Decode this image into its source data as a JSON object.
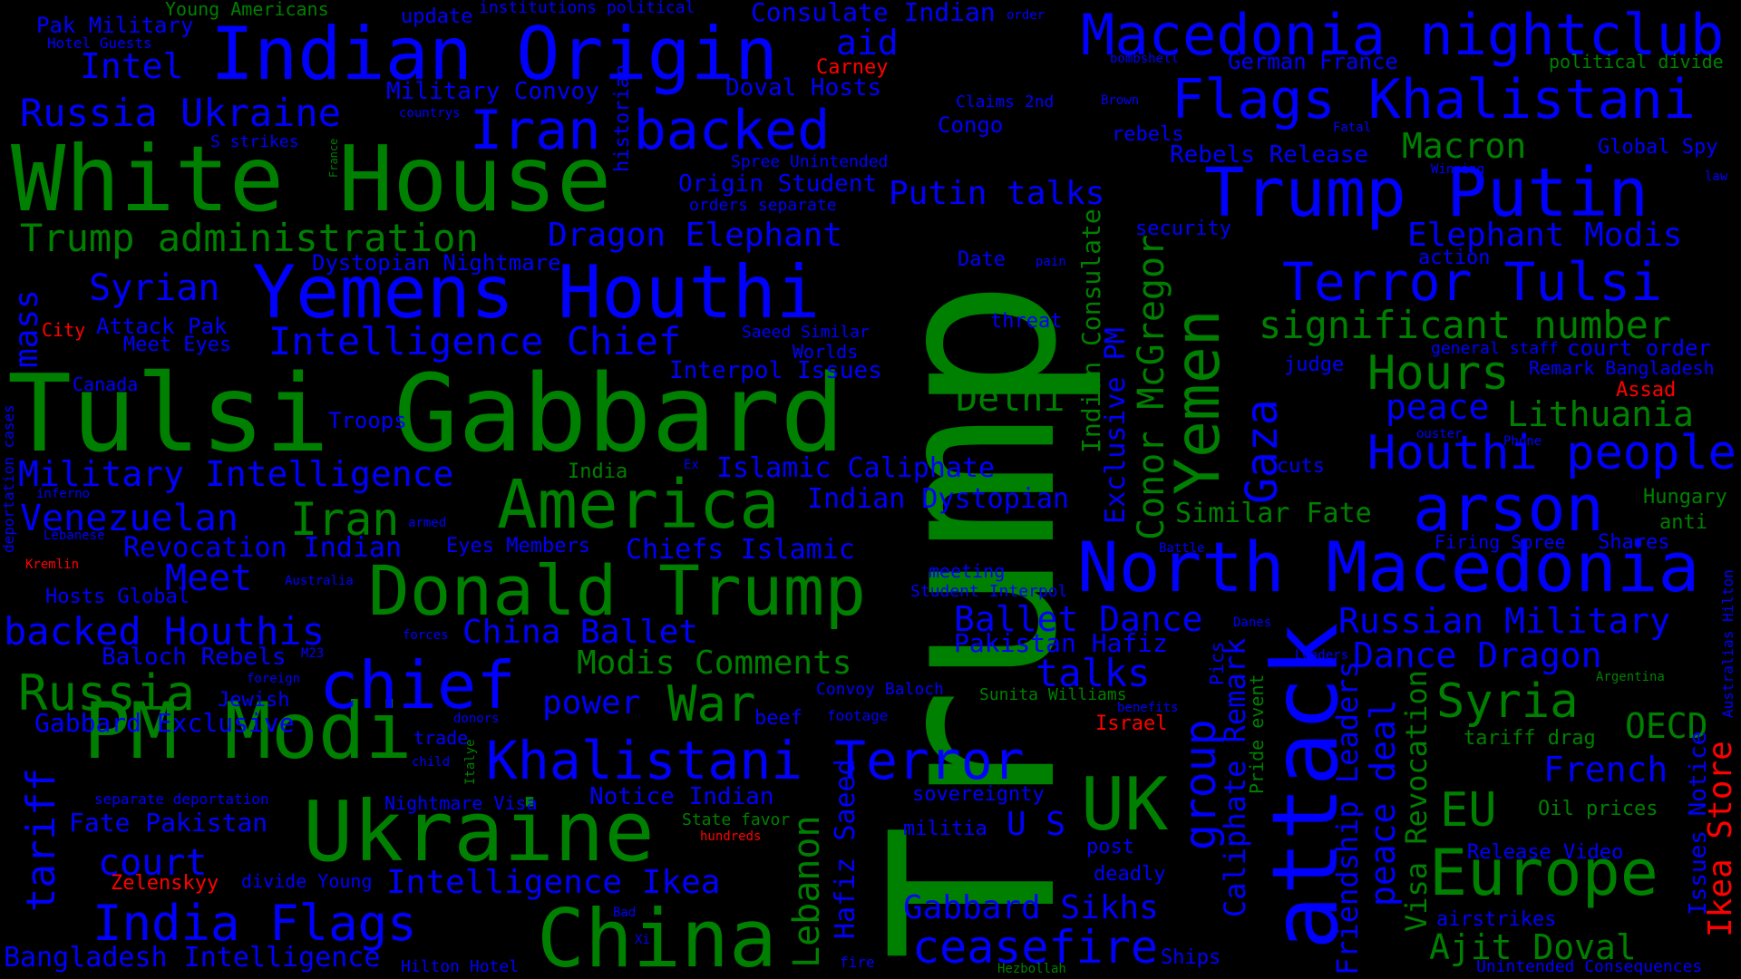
{
  "colors": {
    "background": "#000000",
    "green": "#008000",
    "blue": "#0000ff",
    "red": "#ff0000"
  },
  "words": [
    {
      "text": "Trump",
      "color": "green"
    },
    {
      "text": "Tulsi Gabbard",
      "color": "green"
    },
    {
      "text": "White House",
      "color": "green"
    },
    {
      "text": "Indian Origin",
      "color": "blue"
    },
    {
      "text": "Yemens Houthi",
      "color": "blue"
    },
    {
      "text": "attack",
      "color": "blue"
    },
    {
      "text": "Macedonia nightclub",
      "color": "blue"
    },
    {
      "text": "Trump Putin",
      "color": "blue"
    },
    {
      "text": "Donald Trump",
      "color": "green"
    },
    {
      "text": "Ukraine",
      "color": "green"
    },
    {
      "text": "PM Modi",
      "color": "green"
    },
    {
      "text": "China",
      "color": "green"
    },
    {
      "text": "America",
      "color": "green"
    },
    {
      "text": "North Macedonia",
      "color": "blue"
    },
    {
      "text": "Yemen",
      "color": "green"
    },
    {
      "text": "arson",
      "color": "blue"
    },
    {
      "text": "Europe",
      "color": "green"
    },
    {
      "text": "UK",
      "color": "green"
    },
    {
      "text": "chief",
      "color": "blue"
    },
    {
      "text": "Iran backed",
      "color": "blue"
    },
    {
      "text": "Flags Khalistani",
      "color": "blue"
    },
    {
      "text": "Terror Tulsi",
      "color": "blue"
    },
    {
      "text": "Khalistani Terror",
      "color": "blue"
    },
    {
      "text": "India Flags",
      "color": "blue"
    },
    {
      "text": "ceasefire",
      "color": "blue"
    },
    {
      "text": "Houthi people",
      "color": "blue"
    },
    {
      "text": "Hours",
      "color": "green"
    },
    {
      "text": "Russia",
      "color": "green"
    },
    {
      "text": "Syria",
      "color": "green"
    },
    {
      "text": "EU",
      "color": "green"
    },
    {
      "text": "Iran",
      "color": "green"
    },
    {
      "text": "Ajit Doval",
      "color": "green"
    },
    {
      "text": "Gaza",
      "color": "blue"
    },
    {
      "text": "group",
      "color": "blue"
    },
    {
      "text": "Trump administration",
      "color": "green"
    },
    {
      "text": "Russia Ukraine",
      "color": "blue"
    },
    {
      "text": "significant number",
      "color": "green"
    },
    {
      "text": "Intelligence Chief",
      "color": "blue"
    },
    {
      "text": "Military Intelligence",
      "color": "blue"
    },
    {
      "text": "Dragon Elephant",
      "color": "blue"
    },
    {
      "text": "Putin talks",
      "color": "blue"
    },
    {
      "text": "Elephant Modis",
      "color": "blue"
    },
    {
      "text": "Venezuelan",
      "color": "blue"
    },
    {
      "text": "Syrian",
      "color": "blue"
    },
    {
      "text": "backed Houthis",
      "color": "blue"
    },
    {
      "text": "Macron",
      "color": "green"
    },
    {
      "text": "Lithuania",
      "color": "green"
    },
    {
      "text": "peace",
      "color": "blue"
    },
    {
      "text": "Delhi",
      "color": "green"
    },
    {
      "text": "War",
      "color": "green"
    },
    {
      "text": "Meet",
      "color": "blue"
    },
    {
      "text": "court",
      "color": "blue"
    },
    {
      "text": "tariff",
      "color": "blue"
    },
    {
      "text": "talks",
      "color": "blue"
    },
    {
      "text": "Russian Military",
      "color": "blue"
    },
    {
      "text": "Dance Dragon",
      "color": "blue"
    },
    {
      "text": "Ballet Dance",
      "color": "blue"
    },
    {
      "text": "China Ballet",
      "color": "blue"
    },
    {
      "text": "Modis Comments",
      "color": "green"
    },
    {
      "text": "power",
      "color": "blue"
    },
    {
      "text": "OECD",
      "color": "green"
    },
    {
      "text": "French",
      "color": "blue"
    },
    {
      "text": "Intelligence Ikea",
      "color": "blue"
    },
    {
      "text": "Gabbard Sikhs",
      "color": "blue"
    },
    {
      "text": "Bangladesh Intelligence",
      "color": "blue"
    },
    {
      "text": "Conor McGregor",
      "color": "green"
    },
    {
      "text": "Exclusive PM",
      "color": "blue"
    },
    {
      "text": "Indian Consulate",
      "color": "green"
    },
    {
      "text": "Lebanon",
      "color": "green"
    },
    {
      "text": "Hafiz Saeed",
      "color": "blue"
    },
    {
      "text": "Friendship Leaders",
      "color": "blue"
    },
    {
      "text": "peace deal",
      "color": "blue"
    },
    {
      "text": "Visa Revocation",
      "color": "green"
    },
    {
      "text": "Caliphate Remark",
      "color": "blue"
    },
    {
      "text": "Ikea Store",
      "color": "red"
    },
    {
      "text": "Issues Notice",
      "color": "blue"
    },
    {
      "text": "mass",
      "color": "blue"
    },
    {
      "text": "Intel",
      "color": "blue"
    },
    {
      "text": "aid",
      "color": "blue"
    },
    {
      "text": "Islamic Caliphate",
      "color": "blue"
    },
    {
      "text": "Indian Dystopian",
      "color": "blue"
    },
    {
      "text": "Revocation Indian",
      "color": "blue"
    },
    {
      "text": "Chiefs Islamic",
      "color": "blue"
    },
    {
      "text": "Similar Fate",
      "color": "green"
    },
    {
      "text": "Pakistan Hafiz",
      "color": "blue"
    },
    {
      "text": "Fate Pakistan",
      "color": "blue"
    },
    {
      "text": "Gabbard Exclusive",
      "color": "blue"
    },
    {
      "text": "Notice Indian",
      "color": "blue"
    },
    {
      "text": "Consulate Indian",
      "color": "blue"
    },
    {
      "text": "German France",
      "color": "blue"
    },
    {
      "text": "Rebels Release",
      "color": "blue"
    },
    {
      "text": "Military Convoy",
      "color": "blue"
    },
    {
      "text": "Doval Hosts",
      "color": "blue"
    },
    {
      "text": "Origin Student",
      "color": "blue"
    },
    {
      "text": "Dystopian Nightmare",
      "color": "blue"
    },
    {
      "text": "Interpol Issues",
      "color": "blue"
    },
    {
      "text": "Baloch Rebels",
      "color": "blue"
    },
    {
      "text": "Hosts Global",
      "color": "blue"
    },
    {
      "text": "Attack Pak",
      "color": "blue"
    },
    {
      "text": "Meet Eyes",
      "color": "blue"
    },
    {
      "text": "Eyes Members",
      "color": "blue"
    },
    {
      "text": "Troops",
      "color": "blue"
    },
    {
      "text": "Canada",
      "color": "blue"
    },
    {
      "text": "Jewish",
      "color": "blue"
    },
    {
      "text": "Pak Military",
      "color": "blue"
    },
    {
      "text": "Young Americans",
      "color": "green"
    },
    {
      "text": "Hotel Guests",
      "color": "blue"
    },
    {
      "text": "update",
      "color": "blue"
    },
    {
      "text": "institutions political",
      "color": "blue"
    },
    {
      "text": "Carney",
      "color": "red"
    },
    {
      "text": "Claims 2nd",
      "color": "blue"
    },
    {
      "text": "Congo",
      "color": "blue"
    },
    {
      "text": "rebels",
      "color": "blue"
    },
    {
      "text": "political divide",
      "color": "green"
    },
    {
      "text": "Global Spy",
      "color": "blue"
    },
    {
      "text": "Spree Unintended",
      "color": "blue"
    },
    {
      "text": "orders separate",
      "color": "blue"
    },
    {
      "text": "security",
      "color": "blue"
    },
    {
      "text": "Date",
      "color": "blue"
    },
    {
      "text": "threat",
      "color": "blue"
    },
    {
      "text": "action",
      "color": "blue"
    },
    {
      "text": "judge",
      "color": "blue"
    },
    {
      "text": "general staff",
      "color": "blue"
    },
    {
      "text": "court order",
      "color": "blue"
    },
    {
      "text": "Remark Bangladesh",
      "color": "blue"
    },
    {
      "text": "Assad",
      "color": "red"
    },
    {
      "text": "Saeed Similar",
      "color": "blue"
    },
    {
      "text": "Worlds",
      "color": "blue"
    },
    {
      "text": "City",
      "color": "red"
    },
    {
      "text": "India",
      "color": "green"
    },
    {
      "text": "cuts",
      "color": "blue"
    },
    {
      "text": "Hungary",
      "color": "green"
    },
    {
      "text": "anti",
      "color": "green"
    },
    {
      "text": "Firing Spree",
      "color": "blue"
    },
    {
      "text": "Shares",
      "color": "blue"
    },
    {
      "text": "meeting",
      "color": "blue"
    },
    {
      "text": "Student Interpol",
      "color": "blue"
    },
    {
      "text": "Convoy Baloch",
      "color": "blue"
    },
    {
      "text": "Sunita Williams",
      "color": "green"
    },
    {
      "text": "beef",
      "color": "blue"
    },
    {
      "text": "footage",
      "color": "blue"
    },
    {
      "text": "Israel",
      "color": "red"
    },
    {
      "text": "trade",
      "color": "blue"
    },
    {
      "text": "tariff drag",
      "color": "green"
    },
    {
      "text": "Oil prices",
      "color": "green"
    },
    {
      "text": "Release Video",
      "color": "blue"
    },
    {
      "text": "airstrikes",
      "color": "blue"
    },
    {
      "text": "Unintended Consequences",
      "color": "blue"
    },
    {
      "text": "sovereignty",
      "color": "blue"
    },
    {
      "text": "militia",
      "color": "blue"
    },
    {
      "text": "U S",
      "color": "blue"
    },
    {
      "text": "post",
      "color": "blue"
    },
    {
      "text": "deadly",
      "color": "blue"
    },
    {
      "text": "Ships",
      "color": "blue"
    },
    {
      "text": "Nightmare Visa",
      "color": "blue"
    },
    {
      "text": "State favor",
      "color": "green"
    },
    {
      "text": "hundreds",
      "color": "red"
    },
    {
      "text": "separate deportation",
      "color": "blue"
    },
    {
      "text": "Zelenskyy",
      "color": "red"
    },
    {
      "text": "divide Young",
      "color": "blue"
    },
    {
      "text": "Hilton Hotel",
      "color": "blue"
    },
    {
      "text": "Kremlin",
      "color": "red"
    },
    {
      "text": "fire",
      "color": "blue"
    },
    {
      "text": "Hezbollah",
      "color": "green"
    },
    {
      "text": "Bad",
      "color": "blue"
    },
    {
      "text": "Xi",
      "color": "blue"
    },
    {
      "text": "historian",
      "color": "blue"
    },
    {
      "text": "S strikes",
      "color": "blue"
    },
    {
      "text": "countrys",
      "color": "blue"
    },
    {
      "text": "France",
      "color": "green"
    },
    {
      "text": "deportation cases",
      "color": "blue"
    },
    {
      "text": "inferno",
      "color": "blue"
    },
    {
      "text": "Lebanese",
      "color": "blue"
    },
    {
      "text": "armed",
      "color": "blue"
    },
    {
      "text": "Australia",
      "color": "blue"
    },
    {
      "text": "forces",
      "color": "blue"
    },
    {
      "text": "M23",
      "color": "blue"
    },
    {
      "text": "foreign",
      "color": "blue"
    },
    {
      "text": "donors",
      "color": "blue"
    },
    {
      "text": "child",
      "color": "blue"
    },
    {
      "text": "Italye",
      "color": "green"
    },
    {
      "text": "Pics",
      "color": "blue"
    },
    {
      "text": "Pride event",
      "color": "green"
    },
    {
      "text": "Leaders",
      "color": "blue"
    },
    {
      "text": "Danes",
      "color": "blue"
    },
    {
      "text": "benefits",
      "color": "blue"
    },
    {
      "text": "Argentina",
      "color": "green"
    },
    {
      "text": "Australias Hilton",
      "color": "blue"
    },
    {
      "text": "order",
      "color": "blue"
    },
    {
      "text": "bombshell",
      "color": "blue"
    },
    {
      "text": "Brown",
      "color": "blue"
    },
    {
      "text": "Fatal",
      "color": "blue"
    },
    {
      "text": "Winning",
      "color": "blue"
    },
    {
      "text": "law",
      "color": "blue"
    },
    {
      "text": "pain",
      "color": "blue"
    },
    {
      "text": "ouster",
      "color": "blue"
    },
    {
      "text": "Phone",
      "color": "blue"
    },
    {
      "text": "Battle",
      "color": "blue"
    },
    {
      "text": "Ex",
      "color": "blue"
    }
  ]
}
